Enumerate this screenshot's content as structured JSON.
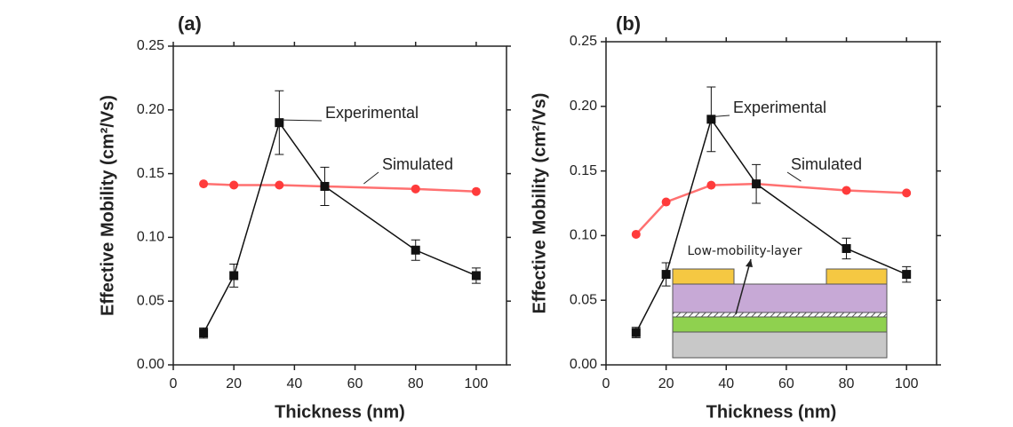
{
  "chart_data": [
    {
      "type": "line",
      "title": "(a)",
      "xlabel": "Thickness (nm)",
      "ylabel": "Effective Mobility (cm²/Vs)",
      "xlim": [
        0,
        110
      ],
      "ylim": [
        0,
        0.25
      ],
      "xticks": [
        0,
        20,
        40,
        60,
        80,
        100
      ],
      "yticks": [
        {
          "value": 0,
          "label": "0.00"
        },
        {
          "value": 0.05,
          "label": "0.05"
        },
        {
          "value": 0.1,
          "label": "0.10"
        },
        {
          "value": 0.15,
          "label": "0.15"
        },
        {
          "value": 0.2,
          "label": "0.20"
        },
        {
          "value": 0.25,
          "label": "0.25"
        }
      ],
      "series": [
        {
          "name": "Experimental",
          "color": "#111111",
          "x": [
            10,
            20,
            35,
            50,
            80,
            100
          ],
          "values": [
            0.025,
            0.07,
            0.19,
            0.14,
            0.09,
            0.07
          ],
          "errors": [
            0.004,
            0.009,
            0.025,
            0.015,
            0.008,
            0.006
          ]
        },
        {
          "name": "Simulated",
          "color": "#ff3b3b",
          "x": [
            10,
            20,
            35,
            50,
            80,
            100
          ],
          "values": [
            0.142,
            0.141,
            0.141,
            0.14,
            0.138,
            0.136
          ]
        }
      ]
    },
    {
      "type": "line",
      "title": "(b)",
      "xlabel": "Thickness (nm)",
      "ylabel": "Effective Mobility (cm²/Vs)",
      "xlim": [
        0,
        110
      ],
      "ylim": [
        0,
        0.25
      ],
      "xticks": [
        0,
        20,
        40,
        60,
        80,
        100
      ],
      "yticks": [
        {
          "value": 0,
          "label": "0.00"
        },
        {
          "value": 0.05,
          "label": "0.05"
        },
        {
          "value": 0.1,
          "label": "0.10"
        },
        {
          "value": 0.15,
          "label": "0.15"
        },
        {
          "value": 0.2,
          "label": "0.20"
        },
        {
          "value": 0.25,
          "label": "0.25"
        }
      ],
      "inset_label": "Low-mobility-layer",
      "series": [
        {
          "name": "Experimental",
          "color": "#111111",
          "x": [
            10,
            20,
            35,
            50,
            80,
            100
          ],
          "values": [
            0.025,
            0.07,
            0.19,
            0.14,
            0.09,
            0.07
          ],
          "errors": [
            0.004,
            0.009,
            0.025,
            0.015,
            0.008,
            0.006
          ]
        },
        {
          "name": "Simulated",
          "color": "#ff3b3b",
          "x": [
            10,
            20,
            35,
            50,
            80,
            100
          ],
          "values": [
            0.101,
            0.126,
            0.139,
            0.14,
            0.135,
            0.133
          ]
        }
      ]
    }
  ]
}
